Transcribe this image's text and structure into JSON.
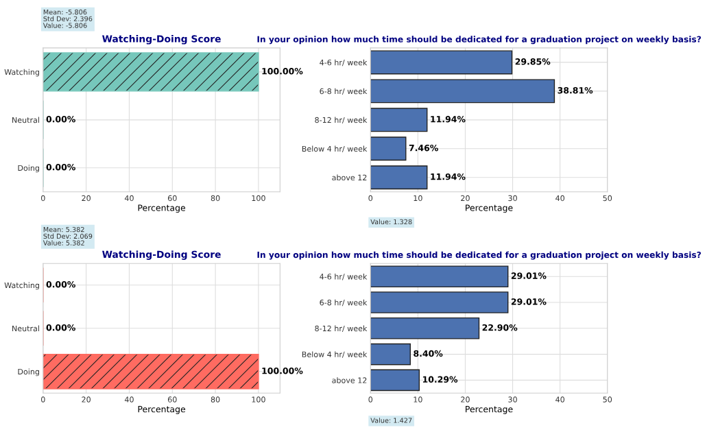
{
  "chart_data": [
    {
      "type": "bar",
      "orientation": "horizontal",
      "title": "Watching-Doing Score",
      "xlabel": "Percentage",
      "categories": [
        "Watching",
        "Neutral",
        "Doing"
      ],
      "values": [
        100,
        0,
        0
      ],
      "colors": [
        "#76c7bb",
        "#76c7bb",
        "#76c7bb"
      ],
      "value_labels": [
        "100.00%",
        "0.00%",
        "0.00%"
      ],
      "xlim": [
        0,
        110
      ],
      "xticks": [
        0,
        20,
        40,
        60,
        80,
        100
      ],
      "grid": true,
      "annotations": [
        "Mean: -5.806\nStd Dev: 2.396\nValue: -5.806"
      ]
    },
    {
      "type": "bar",
      "orientation": "horizontal",
      "title": "In your opinion how much time should be dedicated for a graduation project on weekly basis?",
      "xlabel": "Percentage",
      "categories": [
        "4-6 hr/ week",
        "6-8 hr/ week",
        "8-12 hr/ week",
        "Below 4 hr/ week",
        "above 12"
      ],
      "values": [
        29.85,
        38.81,
        11.94,
        7.46,
        11.94
      ],
      "color": "#4c72b0",
      "value_labels": [
        "29.85%",
        "38.81%",
        "11.94%",
        "7.46%",
        "11.94%"
      ],
      "xlim": [
        0,
        50
      ],
      "xticks": [
        0,
        10,
        20,
        30,
        40,
        50
      ],
      "grid": true,
      "annotations": [
        "Value: 1.328"
      ]
    },
    {
      "type": "bar",
      "orientation": "horizontal",
      "title": "Watching-Doing Score",
      "xlabel": "Percentage",
      "categories": [
        "Watching",
        "Neutral",
        "Doing"
      ],
      "values": [
        0,
        0,
        100
      ],
      "colors": [
        "#ff6b61",
        "#ff6b61",
        "#ff6b61"
      ],
      "value_labels": [
        "0.00%",
        "0.00%",
        "100.00%"
      ],
      "xlim": [
        0,
        110
      ],
      "xticks": [
        0,
        20,
        40,
        60,
        80,
        100
      ],
      "grid": true,
      "annotations": [
        "Mean: 5.382\nStd Dev: 2.069\nValue: 5.382"
      ]
    },
    {
      "type": "bar",
      "orientation": "horizontal",
      "title": "In your opinion how much time should be dedicated for a graduation project on weekly basis?",
      "xlabel": "Percentage",
      "categories": [
        "4-6 hr/ week",
        "6-8 hr/ week",
        "8-12 hr/ week",
        "Below 4 hr/ week",
        "above 12"
      ],
      "values": [
        29.01,
        29.01,
        22.9,
        8.4,
        10.29
      ],
      "color": "#4c72b0",
      "value_labels": [
        "29.01%",
        "29.01%",
        "22.90%",
        "8.40%",
        "10.29%"
      ],
      "xlim": [
        0,
        50
      ],
      "xticks": [
        0,
        10,
        20,
        30,
        40,
        50
      ],
      "grid": true,
      "annotations": [
        "Value: 1.427"
      ]
    }
  ]
}
